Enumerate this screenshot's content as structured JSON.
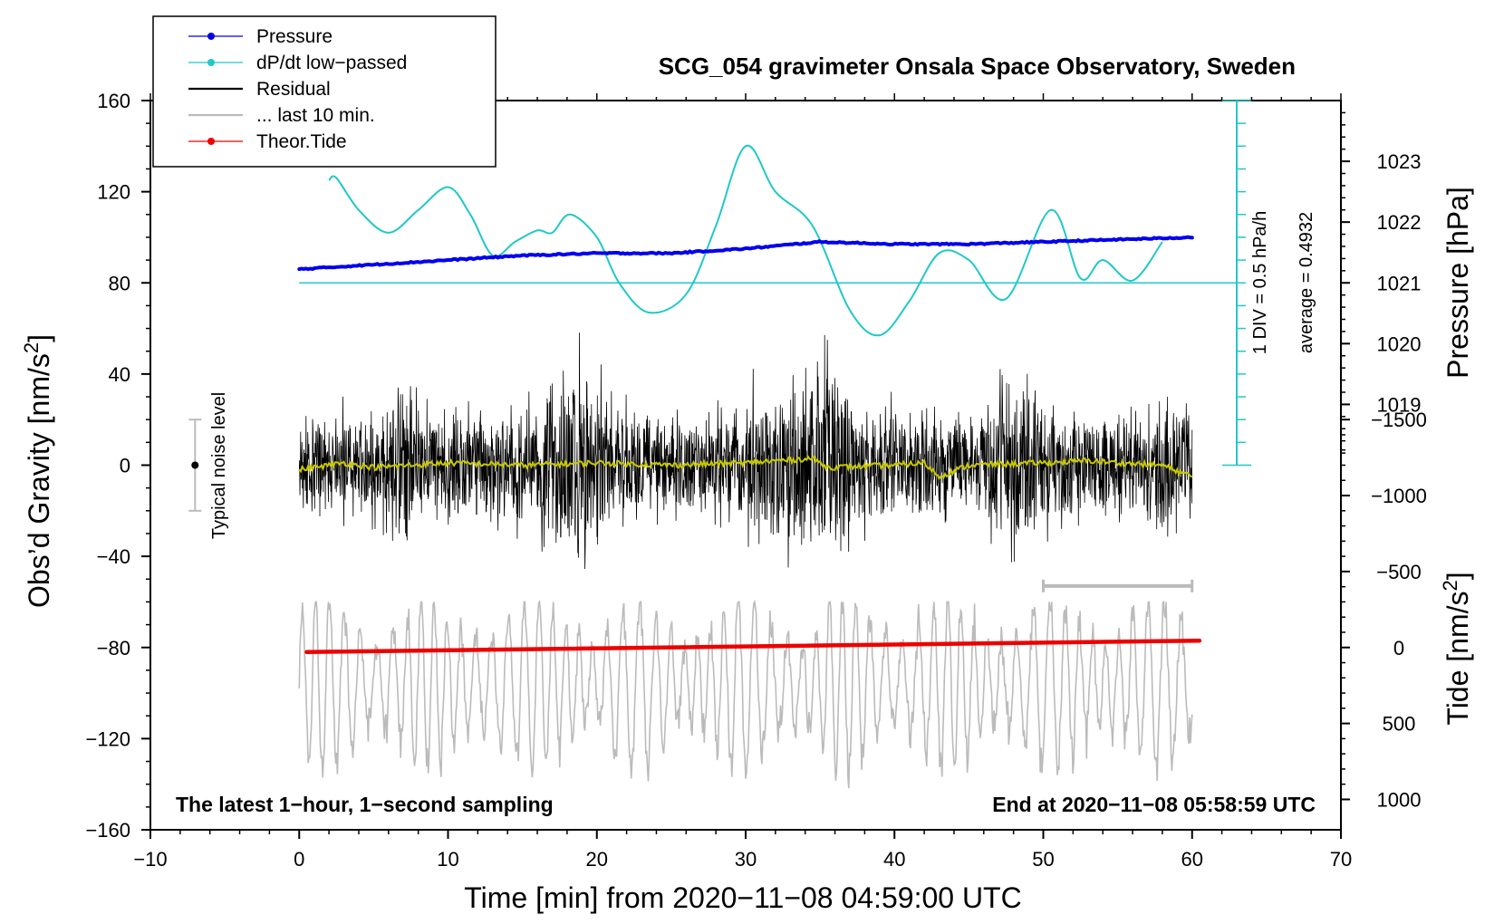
{
  "chart_data": {
    "type": "line",
    "title": "SCG_054 gravimeter Onsala Space Observatory, Sweden",
    "xlabel": "Time [min] from 2020−11−08 04:59:00 UTC",
    "ylabel_main": "Obs’d Gravity [nm/s",
    "ylabel_main_sup": "2",
    "ylabel_main_end": "]",
    "ylabel_pressure": "Pressure [hPa]",
    "ylabel_tide": "Tide [nm/s",
    "ylabel_tide_sup": "2",
    "ylabel_tide_end": "]",
    "xlim": [
      -10,
      70
    ],
    "ylim": [
      -160,
      160
    ],
    "x_ticks": [
      "−10",
      "0",
      "10",
      "20",
      "30",
      "40",
      "50",
      "60",
      "70"
    ],
    "y_ticks": [
      "160",
      "120",
      "80",
      "40",
      "0",
      "−40",
      "−80",
      "−120",
      "−160"
    ],
    "pressure_axis": {
      "ticks": [
        "1023",
        "1022",
        "1021",
        "1020",
        "1019"
      ],
      "values": [
        1023,
        1022,
        1021,
        1020,
        1019
      ],
      "ref_value": 1021,
      "ref_gravity": 80
    },
    "tide_axis": {
      "ticks": [
        "1000",
        "500",
        "0",
        "−500",
        "−1000",
        "−1500"
      ],
      "values": [
        1000,
        500,
        0,
        -500,
        -1000,
        -1500
      ],
      "ref_value": 0,
      "ref_gravity": -80
    },
    "dpdt_scale": {
      "label_div": "1 DIV = 0.5 hPa/h",
      "label_avg": "average = 0.4932",
      "range": [
        0,
        160
      ],
      "divisions": 16
    },
    "legend": {
      "position": "top-left",
      "entries": [
        {
          "label": "Pressure",
          "color": "#0000ee",
          "marker": "dot"
        },
        {
          "label": "dP/dt low−passed",
          "color": "#20c8c8",
          "marker": "dot"
        },
        {
          "label": "Residual",
          "color": "#000000",
          "marker": "none"
        },
        {
          "label": "... last 10 min.",
          "color": "#bbbbbb",
          "marker": "none"
        },
        {
          "label": "Theor.Tide",
          "color": "#ee0000",
          "marker": "dot"
        }
      ]
    },
    "noise_label": "Typical noise level",
    "noise_bar": {
      "x": -7,
      "center": 0,
      "range": [
        -20,
        20
      ]
    },
    "last10_bar": {
      "range": [
        50,
        60
      ],
      "y": -53
    },
    "footer_left": "The latest 1−hour, 1−second sampling",
    "footer_right": "End at 2020−11−08 05:58:59 UTC",
    "series": [
      {
        "name": "Pressure",
        "color": "#0000ee",
        "axis": "gravity",
        "x": [
          0,
          5,
          10,
          15,
          20,
          25,
          30,
          35,
          40,
          45,
          50,
          55,
          60
        ],
        "values": [
          86,
          88,
          90,
          92,
          93,
          93,
          95,
          98,
          97,
          97,
          98,
          99,
          100
        ]
      },
      {
        "name": "dP/dt low-passed",
        "color": "#20c8c8",
        "axis": "gravity",
        "x": [
          2,
          2.5,
          4,
          6,
          8,
          10,
          11.5,
          13,
          14.5,
          16,
          17,
          18.2,
          20,
          21.5,
          23.5,
          26,
          28,
          30,
          32,
          34.5,
          37,
          39,
          41,
          43,
          45,
          47.5,
          50.5,
          52.5,
          54,
          56,
          58
        ],
        "values": [
          125,
          126,
          112,
          102,
          112,
          122,
          110,
          92,
          98,
          103,
          102,
          110,
          100,
          80,
          67,
          75,
          105,
          140,
          120,
          105,
          68,
          57,
          72,
          93,
          90,
          73,
          112,
          82,
          90,
          81,
          98
        ]
      },
      {
        "name": "Residual",
        "color": "#000000",
        "axis": "gravity",
        "x_range": [
          0,
          60
        ],
        "envelope": [
          {
            "x": 0,
            "amp": 28
          },
          {
            "x": 5,
            "amp": 35
          },
          {
            "x": 6.5,
            "amp": 45
          },
          {
            "x": 10,
            "amp": 30
          },
          {
            "x": 15,
            "amp": 35
          },
          {
            "x": 19,
            "amp": 68
          },
          {
            "x": 21,
            "amp": 35
          },
          {
            "x": 25,
            "amp": 28
          },
          {
            "x": 30,
            "amp": 38
          },
          {
            "x": 35.5,
            "amp": 62
          },
          {
            "x": 38,
            "amp": 35
          },
          {
            "x": 45,
            "amp": 30
          },
          {
            "x": 48.5,
            "amp": 55
          },
          {
            "x": 52,
            "amp": 32
          },
          {
            "x": 60,
            "amp": 35
          }
        ]
      },
      {
        "name": "Residual low-passed",
        "color": "#c8c800",
        "axis": "gravity",
        "x": [
          0,
          3,
          5,
          10,
          15,
          20,
          25,
          30,
          34.5,
          35.5,
          40,
          42,
          43,
          45,
          50,
          53,
          55,
          58,
          60
        ],
        "values": [
          -2,
          1,
          -1,
          1,
          0,
          1,
          0,
          1,
          3,
          -1,
          0,
          1,
          -5,
          0,
          1,
          2,
          1,
          0,
          -5
        ]
      },
      {
        "name": "... last 10 min.",
        "color": "#bbbbbb",
        "axis": "gravity",
        "x_range": [
          0,
          60
        ],
        "center": -96,
        "amp_range": [
          -150,
          -60
        ]
      },
      {
        "name": "Theor.Tide",
        "color": "#ee0000",
        "axis": "gravity",
        "x": [
          0.5,
          60.5
        ],
        "values": [
          -82,
          -77
        ]
      }
    ]
  }
}
